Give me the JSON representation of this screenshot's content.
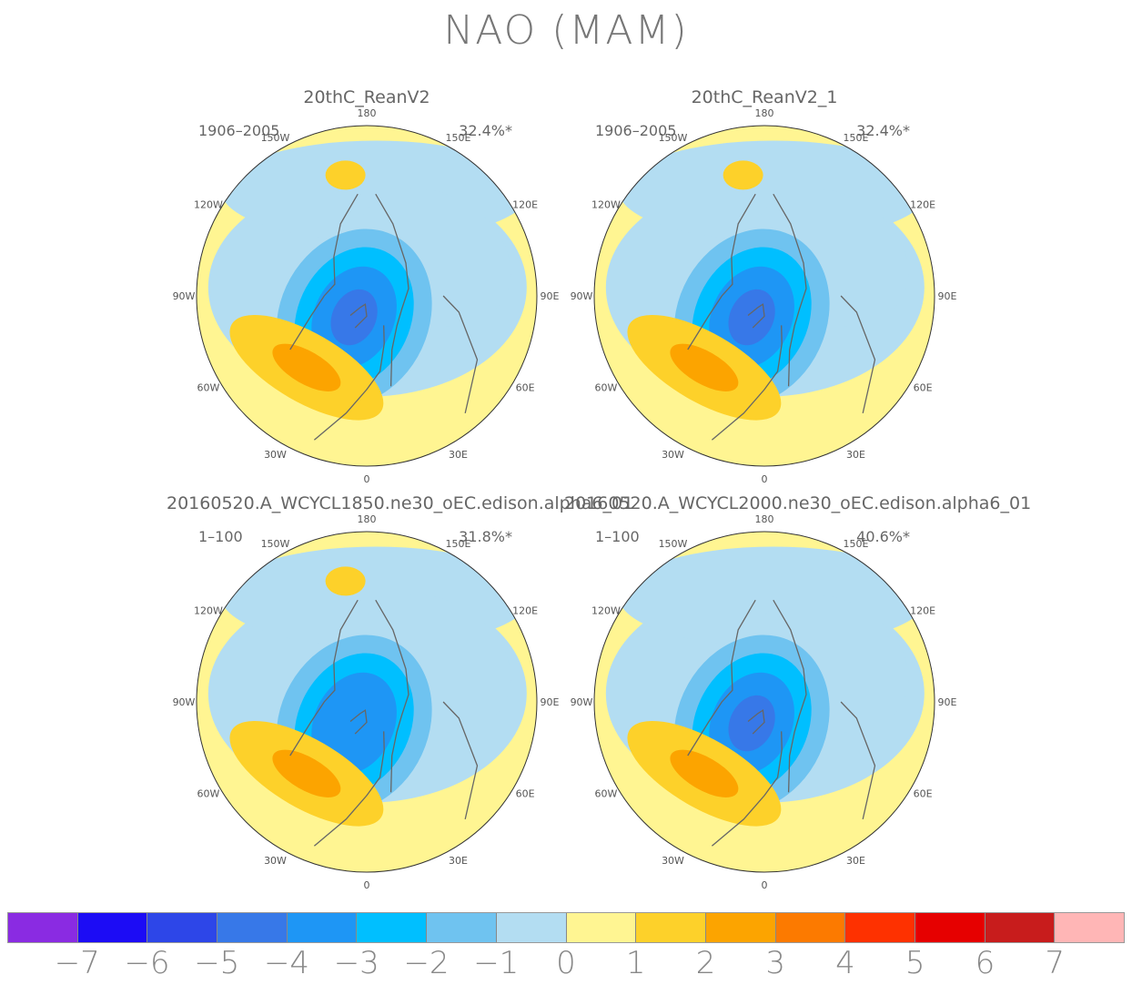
{
  "title": "NAO (MAM)",
  "chart_data": {
    "type": "heatmap",
    "title": "NAO (MAM)",
    "projection": "north-polar-stereographic",
    "longitude_labels": [
      "180",
      "150E",
      "120E",
      "90E",
      "60E",
      "30E",
      "0",
      "30W",
      "60W",
      "90W",
      "120W",
      "150W"
    ],
    "colorbar": {
      "ticks": [
        "-7",
        "-6",
        "-5",
        "-4",
        "-3",
        "-2",
        "-1",
        "0",
        "1",
        "2",
        "3",
        "4",
        "5",
        "6",
        "7"
      ],
      "colors": [
        "#8a2be2",
        "#1c0cf5",
        "#2d46e8",
        "#3778e8",
        "#1e96f5",
        "#00bfff",
        "#6fc3f0",
        "#b3ddf2",
        "#fff592",
        "#fdd12a",
        "#fca400",
        "#fc7a00",
        "#fe3100",
        "#e60000",
        "#c81c1c",
        "#ffb6b6"
      ]
    },
    "panels": [
      {
        "name": "20thC_ReanV2",
        "period": "1906–2005",
        "variance": "32.4%*",
        "pattern": {
          "arctic_low_min": -4.5,
          "atlantic_high_max": 2.5,
          "pacific_high_max": 1.5
        }
      },
      {
        "name": "20thC_ReanV2_1",
        "period": "1906–2005",
        "variance": "32.4%*",
        "pattern": {
          "arctic_low_min": -4.5,
          "atlantic_high_max": 2.5,
          "pacific_high_max": 1.5
        }
      },
      {
        "name": "20160520.A_WCYCL1850.ne30_oEC.edison.alpha6_01",
        "period": "1–100",
        "variance": "31.8%*",
        "pattern": {
          "arctic_low_min": -4.0,
          "atlantic_high_max": 2.5,
          "pacific_high_max": 1.5
        }
      },
      {
        "name": "20160520.A_WCYCL2000.ne30_oEC.edison.alpha6_01",
        "period": "1–100",
        "variance": "40.6%*",
        "pattern": {
          "arctic_low_min": -4.5,
          "atlantic_high_max": 2.5,
          "pacific_high_max": 0.5
        }
      }
    ]
  }
}
